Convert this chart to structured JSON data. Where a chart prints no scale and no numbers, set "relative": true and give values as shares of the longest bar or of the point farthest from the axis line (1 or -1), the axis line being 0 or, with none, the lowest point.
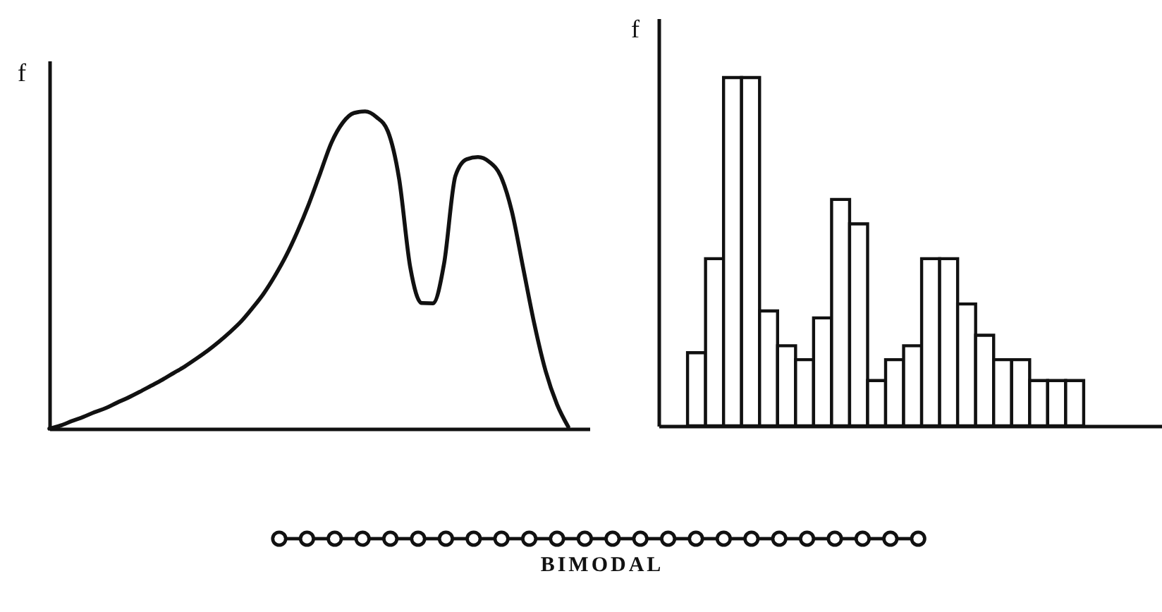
{
  "chart_data": [
    {
      "type": "line",
      "ylabel": "f",
      "relative": true,
      "color": "#111111",
      "annotations": [
        "BIMODAL"
      ],
      "categories": [
        null,
        null,
        null,
        null,
        null,
        null,
        null,
        null,
        null,
        null,
        null,
        null,
        null,
        null,
        null,
        null,
        null,
        null,
        null,
        null,
        null,
        null,
        null,
        null,
        null,
        null,
        null,
        null,
        null,
        null,
        null,
        null,
        null,
        null,
        null,
        null,
        null,
        null,
        null,
        null,
        null,
        null,
        null,
        null,
        null,
        null,
        null
      ],
      "values": [
        0,
        0.01,
        0.024,
        0.037,
        0.052,
        0.065,
        0.082,
        0.098,
        0.116,
        0.135,
        0.154,
        0.175,
        0.196,
        0.22,
        0.245,
        0.273,
        0.304,
        0.338,
        0.38,
        0.426,
        0.482,
        0.546,
        0.622,
        0.708,
        0.804,
        0.901,
        0.964,
        0.995,
        1,
        0.982,
        0.938,
        0.789,
        0.507,
        0.396,
        0.395,
        0.522,
        0.797,
        0.849,
        0.856,
        0.841,
        0.797,
        0.685,
        0.507,
        0.329,
        0.181,
        0.077,
        0.006
      ]
    },
    {
      "type": "bar",
      "ylabel": "f",
      "relative": true,
      "color": "#ffffff",
      "categories": [
        null,
        null,
        null,
        null,
        null,
        null,
        null,
        null,
        null,
        null,
        null,
        null,
        null,
        null,
        null,
        null,
        null,
        null,
        null,
        null,
        null,
        null
      ],
      "values": [
        0.21,
        0.48,
        1,
        1,
        0.33,
        0.23,
        0.19,
        0.31,
        0.65,
        0.58,
        0.13,
        0.19,
        0.23,
        0.48,
        0.48,
        0.35,
        0.26,
        0.19,
        0.19,
        0.13,
        0.13,
        0.13
      ]
    }
  ]
}
